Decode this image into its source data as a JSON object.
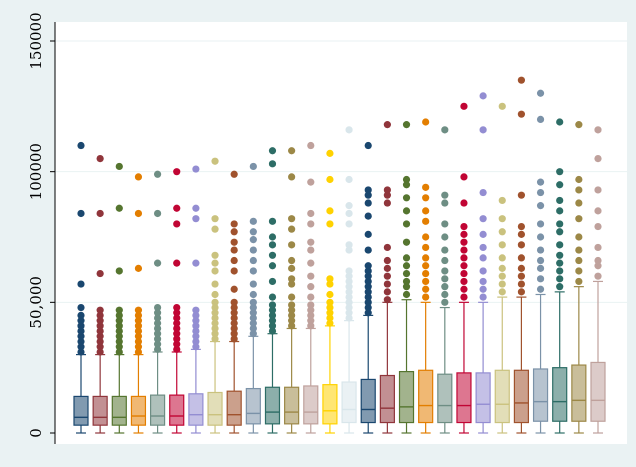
{
  "chart_data": {
    "type": "box",
    "title": "",
    "xlabel": "",
    "ylabel": "",
    "ylim": [
      -5000,
      155000
    ],
    "yticks": [
      0,
      50000,
      100000,
      150000
    ],
    "ytick_labels": [
      "0",
      "50,000",
      "100000",
      "150000"
    ],
    "grid": "horizontal",
    "legend": "none",
    "series": [
      {
        "color": "#1a476f",
        "whisker_low": 0,
        "q1": 3000,
        "median": 6000,
        "q3": 14000,
        "whisker_high": 30000,
        "outliers": [
          31000,
          33000,
          35000,
          37000,
          39000,
          41000,
          43000,
          45000,
          48000,
          57000,
          84000,
          110000
        ]
      },
      {
        "color": "#90353b",
        "whisker_low": 0,
        "q1": 3000,
        "median": 6000,
        "q3": 14000,
        "whisker_high": 30000,
        "outliers": [
          31000,
          33000,
          35000,
          37000,
          39000,
          41000,
          43000,
          45000,
          47000,
          61000,
          84000,
          105000
        ]
      },
      {
        "color": "#55752f",
        "whisker_low": 0,
        "q1": 3000,
        "median": 6000,
        "q3": 14000,
        "whisker_high": 30000,
        "outliers": [
          31000,
          33000,
          35000,
          37000,
          39000,
          41000,
          43000,
          45000,
          47000,
          62000,
          86000,
          102000
        ]
      },
      {
        "color": "#e37e00",
        "whisker_low": 0,
        "q1": 3000,
        "median": 6500,
        "q3": 14000,
        "whisker_high": 30000,
        "outliers": [
          31000,
          33000,
          35000,
          37000,
          39000,
          41000,
          43000,
          45000,
          47000,
          63000,
          84000,
          98000
        ]
      },
      {
        "color": "#6e8e84",
        "whisker_low": 0,
        "q1": 3000,
        "median": 6500,
        "q3": 14500,
        "whisker_high": 31000,
        "outliers": [
          32000,
          34000,
          36000,
          38000,
          40000,
          42000,
          44000,
          46000,
          48000,
          65000,
          84000,
          99000
        ]
      },
      {
        "color": "#c10534",
        "whisker_low": 0,
        "q1": 3000,
        "median": 6500,
        "q3": 14500,
        "whisker_high": 31000,
        "outliers": [
          32000,
          34000,
          36000,
          38000,
          40000,
          42000,
          44000,
          46000,
          48000,
          65000,
          80000,
          86000,
          100000
        ]
      },
      {
        "color": "#938dd2",
        "whisker_low": 0,
        "q1": 3000,
        "median": 7000,
        "q3": 15000,
        "whisker_high": 32000,
        "outliers": [
          33000,
          35000,
          37000,
          39000,
          41000,
          43000,
          45000,
          47000,
          65000,
          82000,
          86000,
          101000
        ]
      },
      {
        "color": "#cac27e",
        "whisker_low": 0,
        "q1": 3000,
        "median": 7000,
        "q3": 15500,
        "whisker_high": 35000,
        "outliers": [
          36000,
          38000,
          40000,
          42000,
          44000,
          46000,
          48000,
          50000,
          53000,
          57000,
          62000,
          65000,
          68000,
          78000,
          82000,
          104000
        ]
      },
      {
        "color": "#a0522d",
        "whisker_low": 0,
        "q1": 3000,
        "median": 7000,
        "q3": 16000,
        "whisker_high": 35000,
        "outliers": [
          36000,
          38000,
          40000,
          42000,
          44000,
          46000,
          48000,
          50000,
          55000,
          62000,
          66000,
          70000,
          73000,
          77000,
          80000,
          99000
        ]
      },
      {
        "color": "#7b92a8",
        "whisker_low": 0,
        "q1": 3500,
        "median": 7500,
        "q3": 17000,
        "whisker_high": 37000,
        "outliers": [
          38000,
          40000,
          42000,
          44000,
          46000,
          48000,
          50000,
          53000,
          57000,
          62000,
          66000,
          70000,
          74000,
          77000,
          81000,
          102000
        ]
      },
      {
        "color": "#2d6d66",
        "whisker_low": 0,
        "q1": 3500,
        "median": 8000,
        "q3": 17500,
        "whisker_high": 38000,
        "outliers": [
          39000,
          41000,
          43000,
          45000,
          47000,
          49000,
          52000,
          58000,
          64000,
          68000,
          72000,
          75000,
          81000,
          103000,
          108000
        ]
      },
      {
        "color": "#9c8847",
        "whisker_low": 0,
        "q1": 3500,
        "median": 8000,
        "q3": 17500,
        "whisker_high": 40000,
        "outliers": [
          41000,
          43000,
          45000,
          47000,
          49000,
          52000,
          57000,
          59000,
          63000,
          66000,
          72000,
          78000,
          82000,
          98000,
          108000
        ]
      },
      {
        "color": "#bfa19c",
        "whisker_low": 0,
        "q1": 3500,
        "median": 8000,
        "q3": 18000,
        "whisker_high": 40000,
        "outliers": [
          41000,
          43000,
          45000,
          47000,
          49000,
          52000,
          56000,
          60000,
          65000,
          70000,
          73000,
          80000,
          84000,
          96000,
          110000
        ]
      },
      {
        "color": "#ffd200",
        "whisker_low": 0,
        "q1": 3500,
        "median": 8500,
        "q3": 18500,
        "whisker_high": 41000,
        "outliers": [
          42000,
          44000,
          46000,
          48000,
          50000,
          53000,
          57000,
          59000,
          80000,
          85000,
          97000,
          107000
        ]
      },
      {
        "color": "#d9e6eb",
        "whisker_low": 0,
        "q1": 4000,
        "median": 9000,
        "q3": 19500,
        "whisker_high": 43000,
        "outliers": [
          44000,
          46000,
          48000,
          50000,
          52000,
          54000,
          56000,
          58000,
          60000,
          62000,
          70000,
          72000,
          80000,
          84000,
          87000,
          97000,
          116000
        ]
      },
      {
        "color": "#1a476f",
        "whisker_low": 0,
        "q1": 4000,
        "median": 9000,
        "q3": 20500,
        "whisker_high": 45000,
        "outliers": [
          46000,
          48000,
          50000,
          52000,
          54000,
          56000,
          58000,
          60000,
          62000,
          64000,
          70000,
          76000,
          83000,
          88000,
          91000,
          93000,
          110000
        ]
      },
      {
        "color": "#90353b",
        "whisker_low": 0,
        "q1": 4000,
        "median": 9500,
        "q3": 22000,
        "whisker_high": 50000,
        "outliers": [
          51000,
          54000,
          57000,
          60000,
          63000,
          66000,
          71000,
          88000,
          91000,
          93000,
          118000
        ]
      },
      {
        "color": "#55752f",
        "whisker_low": 0,
        "q1": 4000,
        "median": 10000,
        "q3": 23500,
        "whisker_high": 51000,
        "outliers": [
          53000,
          56000,
          58000,
          61000,
          64000,
          67000,
          73000,
          80000,
          85000,
          90000,
          95000,
          97000,
          118000
        ]
      },
      {
        "color": "#e37e00",
        "whisker_low": 0,
        "q1": 4000,
        "median": 10500,
        "q3": 24000,
        "whisker_high": 50000,
        "outliers": [
          52000,
          55000,
          58000,
          61000,
          64000,
          67000,
          71000,
          75000,
          81000,
          85000,
          90000,
          94000,
          119000
        ]
      },
      {
        "color": "#6e8e84",
        "whisker_low": 0,
        "q1": 4000,
        "median": 10500,
        "q3": 22500,
        "whisker_high": 48000,
        "outliers": [
          50000,
          53000,
          56000,
          59000,
          62000,
          66000,
          70000,
          75000,
          80000,
          88000,
          91000,
          116000
        ]
      },
      {
        "color": "#c10534",
        "whisker_low": 0,
        "q1": 4000,
        "median": 10500,
        "q3": 23000,
        "whisker_high": 50000,
        "outliers": [
          52000,
          55000,
          58000,
          61000,
          64000,
          67000,
          70000,
          73000,
          76000,
          79000,
          88000,
          98000,
          125000
        ]
      },
      {
        "color": "#938dd2",
        "whisker_low": 0,
        "q1": 4000,
        "median": 11000,
        "q3": 23000,
        "whisker_high": 50000,
        "outliers": [
          52000,
          55000,
          58000,
          62000,
          67000,
          71000,
          76000,
          82000,
          92000,
          116000,
          129000
        ]
      },
      {
        "color": "#cac27e",
        "whisker_low": 0,
        "q1": 4000,
        "median": 11000,
        "q3": 24000,
        "whisker_high": 52000,
        "outliers": [
          54000,
          57000,
          60000,
          63000,
          67000,
          72000,
          77000,
          82000,
          89000,
          125000
        ]
      },
      {
        "color": "#a0522d",
        "whisker_low": 0,
        "q1": 4000,
        "median": 11500,
        "q3": 24000,
        "whisker_high": 52000,
        "outliers": [
          54000,
          57000,
          60000,
          63000,
          67000,
          72000,
          76000,
          79000,
          91000,
          122000,
          135000
        ]
      },
      {
        "color": "#7b92a8",
        "whisker_low": 0,
        "q1": 4500,
        "median": 12000,
        "q3": 24500,
        "whisker_high": 53000,
        "outliers": [
          55000,
          59000,
          63000,
          66000,
          70000,
          75000,
          80000,
          87000,
          92000,
          96000,
          120000,
          130000
        ]
      },
      {
        "color": "#2d6d66",
        "whisker_low": 0,
        "q1": 4500,
        "median": 12000,
        "q3": 25000,
        "whisker_high": 54000,
        "outliers": [
          56000,
          59000,
          62000,
          65000,
          68000,
          72000,
          77000,
          80000,
          85000,
          89000,
          95000,
          100000,
          119000
        ]
      },
      {
        "color": "#9c8847",
        "whisker_low": 0,
        "q1": 4500,
        "median": 12500,
        "q3": 26000,
        "whisker_high": 56000,
        "outliers": [
          58000,
          62000,
          66000,
          70000,
          75000,
          82000,
          88000,
          93000,
          97000,
          118000
        ]
      },
      {
        "color": "#bfa19c",
        "whisker_low": 0,
        "q1": 4500,
        "median": 12500,
        "q3": 27000,
        "whisker_high": 58000,
        "outliers": [
          60000,
          64000,
          66000,
          71000,
          79000,
          85000,
          93000,
          105000,
          116000
        ]
      }
    ]
  }
}
